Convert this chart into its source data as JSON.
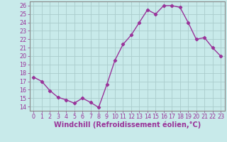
{
  "x": [
    0,
    1,
    2,
    3,
    4,
    5,
    6,
    7,
    8,
    9,
    10,
    11,
    12,
    13,
    14,
    15,
    16,
    17,
    18,
    19,
    20,
    21,
    22,
    23
  ],
  "y": [
    17.5,
    17.0,
    15.9,
    15.1,
    14.8,
    14.4,
    15.0,
    14.5,
    13.9,
    16.6,
    19.5,
    21.4,
    22.5,
    24.0,
    25.5,
    25.0,
    26.0,
    26.0,
    25.8,
    24.0,
    22.0,
    22.2,
    21.0,
    20.0
  ],
  "line_color": "#993399",
  "marker": "D",
  "marker_size": 2.2,
  "bg_color": "#c8eaea",
  "grid_color": "#aacccc",
  "xlabel": "Windchill (Refroidissement éolien,°C)",
  "ylabel": "",
  "ylim": [
    13.5,
    26.5
  ],
  "xlim": [
    -0.5,
    23.5
  ],
  "yticks": [
    14,
    15,
    16,
    17,
    18,
    19,
    20,
    21,
    22,
    23,
    24,
    25,
    26
  ],
  "xticks": [
    0,
    1,
    2,
    3,
    4,
    5,
    6,
    7,
    8,
    9,
    10,
    11,
    12,
    13,
    14,
    15,
    16,
    17,
    18,
    19,
    20,
    21,
    22,
    23
  ],
  "tick_label_size": 5.8,
  "xlabel_size": 7.0,
  "line_width": 1.0,
  "border_color": "#888888",
  "spine_color": "#888888"
}
